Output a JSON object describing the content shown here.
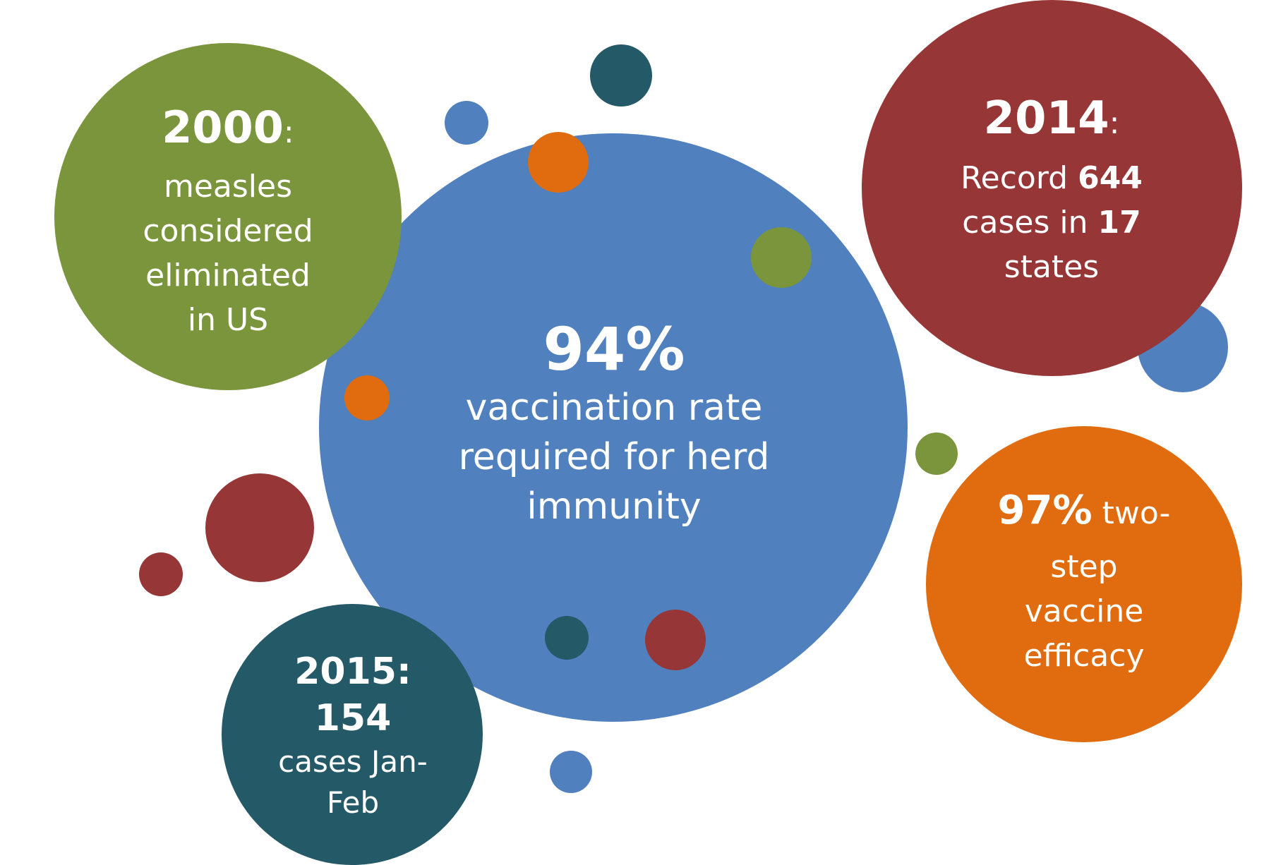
{
  "colors": {
    "blue": "#5080bd",
    "green": "#7a953c",
    "red": "#963636",
    "orange": "#e06c0f",
    "teal": "#245968"
  },
  "bubbles": {
    "center": {
      "value": "94%",
      "lines": [
        "vaccination rate",
        "required for herd",
        "immunity"
      ]
    },
    "year2000": {
      "year": "2000",
      "suffix": ":",
      "lines": [
        "measles",
        "considered",
        "eliminated",
        "in US"
      ]
    },
    "year2014": {
      "year": "2014",
      "suffix": ":",
      "line1": "Record ",
      "cases": "644",
      "line2": "cases in ",
      "states": "17",
      "line3": "states"
    },
    "year2015": {
      "year": "2015:",
      "cases": "154",
      "lines": [
        "cases Jan-",
        "Feb"
      ]
    },
    "efficacy": {
      "value": "97%",
      "value_suffix": " two-",
      "lines": [
        "step",
        "vaccine",
        "efficacy"
      ]
    }
  }
}
